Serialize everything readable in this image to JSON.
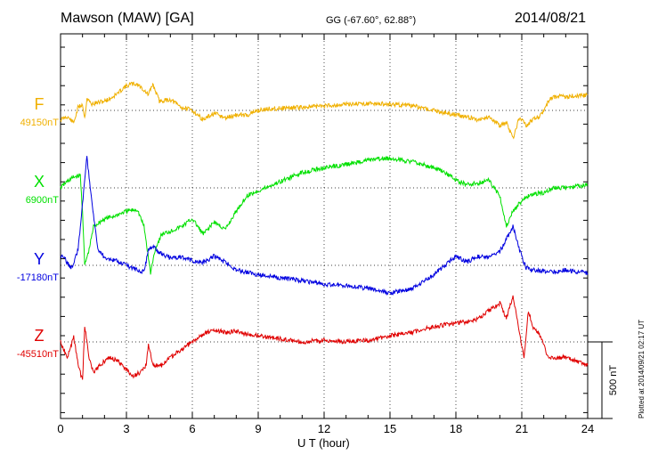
{
  "header": {
    "station": "Mawson (MAW)  [GA]",
    "coords": "GG (-67.60°,  62.88°)",
    "date": "2014/08/21"
  },
  "footer_note": "Plotted at 2014/09/21 02:17 UT",
  "scale_label": "500 nT",
  "chart_data": {
    "type": "line",
    "xlabel": "U T (hour)",
    "xlim": [
      0,
      24
    ],
    "xticks": [
      0,
      3,
      6,
      9,
      12,
      15,
      18,
      21,
      24
    ],
    "grid": true,
    "panel_range_nT": 1000,
    "series": [
      {
        "name": "F",
        "baseline": "49150nT",
        "color": "#f0b000",
        "x": [
          0,
          0.3,
          0.6,
          0.8,
          1.0,
          1.1,
          1.2,
          1.4,
          1.7,
          2.0,
          2.3,
          2.6,
          2.9,
          3.2,
          3.5,
          3.8,
          4.0,
          4.2,
          4.5,
          5.0,
          5.5,
          6.0,
          6.5,
          7.0,
          7.5,
          8.0,
          8.5,
          9.0,
          9.5,
          10,
          11,
          12,
          13,
          14,
          15,
          16,
          17,
          18,
          18.5,
          19,
          19.5,
          20,
          20.3,
          20.6,
          20.9,
          21.2,
          21.5,
          21.8,
          22,
          22.3,
          22.6,
          23,
          24
        ],
        "y": [
          -60,
          -40,
          -80,
          20,
          40,
          -50,
          80,
          40,
          50,
          60,
          80,
          110,
          150,
          170,
          170,
          130,
          100,
          170,
          60,
          70,
          20,
          0,
          -60,
          -20,
          -50,
          -30,
          -30,
          0,
          10,
          15,
          20,
          30,
          40,
          45,
          40,
          30,
          0,
          -30,
          -40,
          -60,
          -40,
          -100,
          -80,
          -180,
          -40,
          -100,
          -60,
          -40,
          0,
          80,
          90,
          90,
          100
        ]
      },
      {
        "name": "X",
        "baseline": "6900nT",
        "color": "#00e000",
        "x": [
          0,
          0.3,
          0.6,
          0.9,
          1.0,
          1.1,
          1.3,
          1.5,
          2.0,
          2.5,
          3.0,
          3.5,
          3.8,
          4.0,
          4.1,
          4.3,
          4.6,
          5.0,
          5.5,
          6.0,
          6.5,
          7.0,
          7.5,
          8.0,
          8.5,
          9.0,
          10,
          11,
          12,
          13,
          14,
          15,
          16,
          17,
          17.5,
          18,
          18.5,
          19,
          19.5,
          20,
          20.3,
          20.6,
          20.9,
          21.2,
          21.5,
          22,
          22.5,
          23,
          24
        ],
        "y": [
          0,
          40,
          70,
          80,
          -150,
          -500,
          -400,
          -250,
          -200,
          -180,
          -150,
          -140,
          -250,
          -450,
          -550,
          -400,
          -300,
          -280,
          -250,
          -200,
          -300,
          -220,
          -270,
          -150,
          -50,
          -20,
          40,
          100,
          130,
          150,
          180,
          190,
          170,
          130,
          100,
          50,
          20,
          30,
          50,
          -50,
          -250,
          -150,
          -100,
          -60,
          -40,
          -30,
          0,
          0,
          20
        ]
      },
      {
        "name": "Y",
        "baseline": "-17180nT",
        "color": "#0000e0",
        "x": [
          0,
          0.2,
          0.5,
          0.8,
          1.0,
          1.2,
          1.4,
          1.7,
          2.0,
          2.5,
          3.0,
          3.5,
          3.8,
          4.0,
          4.2,
          4.5,
          5.0,
          5.5,
          6.0,
          6.5,
          7.0,
          7.5,
          8.0,
          9.0,
          10,
          11,
          12,
          13,
          14,
          15,
          16,
          17,
          17.5,
          18,
          18.5,
          19,
          19.5,
          20,
          20.3,
          20.6,
          20.9,
          21.2,
          21.5,
          22,
          22.5,
          23,
          24
        ],
        "y": [
          60,
          40,
          -20,
          100,
          400,
          700,
          450,
          100,
          50,
          30,
          0,
          -30,
          -40,
          100,
          130,
          80,
          50,
          50,
          30,
          20,
          60,
          20,
          -30,
          -60,
          -80,
          -100,
          -120,
          -130,
          -150,
          -180,
          -150,
          -60,
          0,
          60,
          20,
          60,
          50,
          90,
          170,
          250,
          100,
          -20,
          -30,
          -40,
          -40,
          -30,
          -50
        ]
      },
      {
        "name": "Z",
        "baseline": "-45510nT",
        "color": "#e00000",
        "x": [
          0,
          0.3,
          0.6,
          0.8,
          1.0,
          1.1,
          1.3,
          1.5,
          1.8,
          2.2,
          2.6,
          3.0,
          3.3,
          3.6,
          3.9,
          4.0,
          4.2,
          4.6,
          5.0,
          5.5,
          6.0,
          6.5,
          7.0,
          7.5,
          8.0,
          8.5,
          9.0,
          10,
          11,
          12,
          13,
          14,
          15,
          16,
          17,
          18,
          18.5,
          19,
          19.5,
          20,
          20.3,
          20.6,
          20.9,
          21.1,
          21.3,
          21.5,
          21.8,
          22.2,
          23,
          24
        ],
        "y": [
          0,
          -100,
          30,
          -150,
          -250,
          100,
          -100,
          -200,
          -150,
          -100,
          -120,
          -180,
          -220,
          -200,
          -150,
          -10,
          -150,
          -150,
          -100,
          -50,
          0,
          50,
          80,
          60,
          70,
          50,
          40,
          20,
          0,
          10,
          0,
          10,
          40,
          60,
          100,
          120,
          130,
          150,
          200,
          250,
          150,
          300,
          50,
          -100,
          200,
          100,
          50,
          -100,
          -100,
          -150
        ]
      }
    ]
  }
}
